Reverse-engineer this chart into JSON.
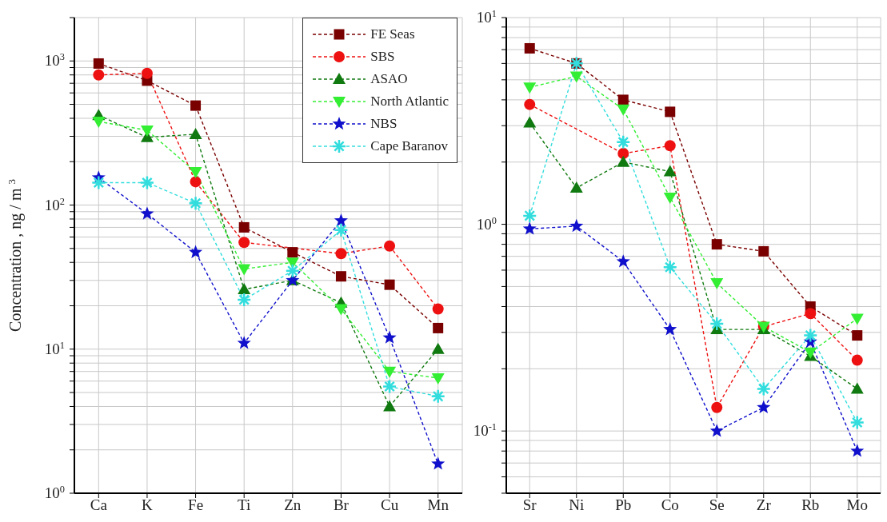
{
  "chart_data": [
    {
      "type": "line",
      "ylabel": "Concentration , ng / m $^{3}$",
      "categories": [
        "Ca",
        "K",
        "Fe",
        "Ti",
        "Zn",
        "Br",
        "Cu",
        "Mn"
      ],
      "log": "y",
      "ylim": [
        1,
        2000
      ],
      "yticks": [
        {
          "value": 1,
          "label": "10$^{0}$"
        },
        {
          "value": 2,
          "label": null
        },
        {
          "value": 3,
          "label": null
        },
        {
          "value": 4,
          "label": null
        },
        {
          "value": 5,
          "label": null
        },
        {
          "value": 6,
          "label": null
        },
        {
          "value": 7,
          "label": null
        },
        {
          "value": 8,
          "label": null
        },
        {
          "value": 9,
          "label": null
        },
        {
          "value": 10,
          "label": "10$^{1}$"
        },
        {
          "value": 20,
          "label": null
        },
        {
          "value": 30,
          "label": null
        },
        {
          "value": 40,
          "label": null
        },
        {
          "value": 50,
          "label": null
        },
        {
          "value": 60,
          "label": null
        },
        {
          "value": 70,
          "label": null
        },
        {
          "value": 80,
          "label": null
        },
        {
          "value": 90,
          "label": null
        },
        {
          "value": 100,
          "label": "10$^{2}$"
        },
        {
          "value": 200,
          "label": null
        },
        {
          "value": 300,
          "label": null
        },
        {
          "value": 400,
          "label": null
        },
        {
          "value": 500,
          "label": null
        },
        {
          "value": 600,
          "label": null
        },
        {
          "value": 700,
          "label": null
        },
        {
          "value": 800,
          "label": null
        },
        {
          "value": 900,
          "label": null
        },
        {
          "value": 1000,
          "label": "10$^{3}$"
        },
        {
          "value": 2000,
          "label": null
        }
      ],
      "grid": true,
      "legend": "top right",
      "line_style": "dashed",
      "series": [
        {
          "name": "FE Seas",
          "color": "#7a0000",
          "marker": "square",
          "values": [
            960,
            730,
            490,
            70,
            47,
            32,
            28,
            14
          ]
        },
        {
          "name": "SBS",
          "color": "#ee1111",
          "marker": "circle",
          "values": [
            800,
            820,
            145,
            55,
            null,
            46,
            52,
            19
          ]
        },
        {
          "name": "ASAO",
          "color": "#107a10",
          "marker": "triangle",
          "values": [
            420,
            295,
            310,
            26,
            30,
            21,
            4,
            10
          ]
        },
        {
          "name": "North Atlantic",
          "color": "#33ee33",
          "marker": "triangle-down",
          "values": [
            380,
            330,
            170,
            36,
            40,
            19,
            7,
            6.3
          ]
        },
        {
          "name": "NBS",
          "color": "#1010cc",
          "marker": "star",
          "values": [
            155,
            87,
            47,
            11,
            30,
            78,
            12,
            1.6
          ]
        },
        {
          "name": "Cape Baranov",
          "color": "#33dddd",
          "marker": "cross",
          "values": [
            143,
            143,
            103,
            22,
            35,
            67,
            5.5,
            4.7
          ]
        }
      ]
    },
    {
      "type": "line",
      "categories": [
        "Sr",
        "Ni",
        "Pb",
        "Co",
        "Se",
        "Zr",
        "Rb",
        "Mo"
      ],
      "log": "y",
      "ylim": [
        0.05,
        10
      ],
      "yticks": [
        {
          "value": 0.05,
          "label": null
        },
        {
          "value": 0.06,
          "label": null
        },
        {
          "value": 0.07,
          "label": null
        },
        {
          "value": 0.08,
          "label": null
        },
        {
          "value": 0.09,
          "label": null
        },
        {
          "value": 0.1,
          "label": "10$^{-1}$"
        },
        {
          "value": 0.2,
          "label": null
        },
        {
          "value": 0.3,
          "label": null
        },
        {
          "value": 0.4,
          "label": null
        },
        {
          "value": 0.5,
          "label": null
        },
        {
          "value": 0.6,
          "label": null
        },
        {
          "value": 0.7,
          "label": null
        },
        {
          "value": 0.8,
          "label": null
        },
        {
          "value": 0.9,
          "label": null
        },
        {
          "value": 1,
          "label": "10$^{0}$"
        },
        {
          "value": 2,
          "label": null
        },
        {
          "value": 3,
          "label": null
        },
        {
          "value": 4,
          "label": null
        },
        {
          "value": 5,
          "label": null
        },
        {
          "value": 6,
          "label": null
        },
        {
          "value": 7,
          "label": null
        },
        {
          "value": 8,
          "label": null
        },
        {
          "value": 9,
          "label": null
        },
        {
          "value": 10,
          "label": "10$^{1}$"
        }
      ],
      "grid": true,
      "line_style": "dashed",
      "series": [
        {
          "color": "#7a0000",
          "marker": "square",
          "values": [
            7.1,
            6.0,
            4.0,
            3.5,
            0.8,
            0.74,
            0.4,
            0.29
          ]
        },
        {
          "color": "#ee1111",
          "marker": "circle",
          "values": [
            3.8,
            null,
            2.2,
            2.4,
            0.13,
            0.32,
            0.37,
            0.22
          ]
        },
        {
          "color": "#107a10",
          "marker": "triangle",
          "values": [
            3.1,
            1.5,
            2.0,
            1.8,
            0.31,
            0.31,
            0.23,
            0.16
          ]
        },
        {
          "color": "#33ee33",
          "marker": "triangle-down",
          "values": [
            4.6,
            5.2,
            3.6,
            1.35,
            0.52,
            0.32,
            0.24,
            0.35
          ]
        },
        {
          "color": "#1010cc",
          "marker": "star",
          "values": [
            0.95,
            0.98,
            0.66,
            0.31,
            0.1,
            0.13,
            0.27,
            0.08
          ]
        },
        {
          "color": "#33dddd",
          "marker": "cross",
          "values": [
            1.1,
            6.0,
            2.5,
            0.62,
            0.33,
            0.16,
            0.29,
            0.11
          ]
        }
      ]
    }
  ]
}
